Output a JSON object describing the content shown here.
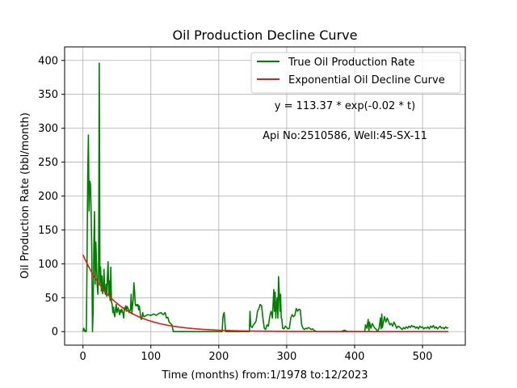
{
  "chart_data": {
    "type": "line",
    "title": "Oil Production Decline Curve",
    "xlabel": "Time (months) from:1/1978 to:12/2023",
    "ylabel": "Oil Production Rate (bbl/month)",
    "xlim": [
      -27,
      563
    ],
    "ylim": [
      -20,
      420
    ],
    "xticks": [
      0,
      100,
      200,
      300,
      400,
      500
    ],
    "yticks": [
      0,
      50,
      100,
      150,
      200,
      250,
      300,
      350,
      400
    ],
    "grid": true,
    "legend_position": "top-right",
    "annotations": [
      "y = 113.37 * exp(-0.02 * t)",
      "Api No:2510586, Well:45-SX-11"
    ],
    "series": [
      {
        "name": "True Oil Production Rate",
        "color": "#008000",
        "style": "line",
        "points": [
          [
            0,
            0
          ],
          [
            1,
            5
          ],
          [
            2,
            3
          ],
          [
            3,
            0
          ],
          [
            4,
            2
          ],
          [
            5,
            0
          ],
          [
            6,
            100
          ],
          [
            7,
            230
          ],
          [
            8,
            290
          ],
          [
            9,
            178
          ],
          [
            10,
            222
          ],
          [
            11,
            218
          ],
          [
            12,
            180
          ],
          [
            13,
            118
          ],
          [
            14,
            0
          ],
          [
            15,
            30
          ],
          [
            16,
            125
          ],
          [
            17,
            177
          ],
          [
            18,
            70
          ],
          [
            19,
            132
          ],
          [
            20,
            100
          ],
          [
            21,
            68
          ],
          [
            22,
            55
          ],
          [
            23,
            90
          ],
          [
            24,
            396
          ],
          [
            25,
            72
          ],
          [
            26,
            95
          ],
          [
            27,
            60
          ],
          [
            28,
            82
          ],
          [
            29,
            56
          ],
          [
            30,
            62
          ],
          [
            31,
            92
          ],
          [
            32,
            60
          ],
          [
            33,
            55
          ],
          [
            34,
            70
          ],
          [
            35,
            52
          ],
          [
            36,
            82
          ],
          [
            37,
            103
          ],
          [
            38,
            55
          ],
          [
            39,
            75
          ],
          [
            40,
            46
          ],
          [
            41,
            95
          ],
          [
            42,
            44
          ],
          [
            43,
            40
          ],
          [
            44,
            28
          ],
          [
            45,
            36
          ],
          [
            46,
            25
          ],
          [
            47,
            22
          ],
          [
            48,
            34
          ],
          [
            49,
            40
          ],
          [
            50,
            28
          ],
          [
            51,
            32
          ],
          [
            52,
            35
          ],
          [
            53,
            30
          ],
          [
            54,
            25
          ],
          [
            55,
            32
          ],
          [
            56,
            28
          ],
          [
            57,
            33
          ],
          [
            58,
            30
          ],
          [
            59,
            27
          ],
          [
            60,
            20
          ],
          [
            61,
            35
          ],
          [
            62,
            32
          ],
          [
            63,
            38
          ],
          [
            64,
            30
          ],
          [
            65,
            37
          ],
          [
            66,
            35
          ],
          [
            67,
            33
          ],
          [
            68,
            28
          ],
          [
            69,
            30
          ],
          [
            70,
            33
          ],
          [
            71,
            55
          ],
          [
            72,
            26
          ],
          [
            73,
            38
          ],
          [
            74,
            48
          ],
          [
            75,
            72
          ],
          [
            76,
            60
          ],
          [
            77,
            40
          ],
          [
            78,
            38
          ],
          [
            79,
            40
          ],
          [
            80,
            38
          ],
          [
            81,
            40
          ],
          [
            82,
            32
          ],
          [
            83,
            38
          ],
          [
            84,
            30
          ],
          [
            85,
            20
          ],
          [
            86,
            18
          ],
          [
            87,
            22
          ],
          [
            88,
            28
          ],
          [
            89,
            23
          ],
          [
            90,
            22
          ],
          [
            95,
            25
          ],
          [
            100,
            24
          ],
          [
            104,
            26
          ],
          [
            108,
            24
          ],
          [
            112,
            27
          ],
          [
            115,
            28
          ],
          [
            118,
            25
          ],
          [
            121,
            28
          ],
          [
            123,
            20
          ],
          [
            125,
            21
          ],
          [
            127,
            14
          ],
          [
            129,
            12
          ],
          [
            131,
            10
          ],
          [
            133,
            0
          ],
          [
            150,
            0
          ],
          [
            170,
            0
          ],
          [
            190,
            0
          ],
          [
            205,
            0
          ],
          [
            206,
            20
          ],
          [
            207,
            26
          ],
          [
            208,
            28
          ],
          [
            209,
            14
          ],
          [
            210,
            0
          ],
          [
            225,
            0
          ],
          [
            240,
            0
          ],
          [
            245,
            0
          ],
          [
            246,
            30
          ],
          [
            247,
            8
          ],
          [
            249,
            6
          ],
          [
            251,
            10
          ],
          [
            253,
            12
          ],
          [
            255,
            16
          ],
          [
            257,
            30
          ],
          [
            259,
            34
          ],
          [
            261,
            40
          ],
          [
            263,
            38
          ],
          [
            265,
            20
          ],
          [
            267,
            5
          ],
          [
            269,
            3
          ],
          [
            271,
            10
          ],
          [
            273,
            8
          ],
          [
            275,
            22
          ],
          [
            277,
            30
          ],
          [
            279,
            20
          ],
          [
            281,
            62
          ],
          [
            282,
            30
          ],
          [
            283,
            58
          ],
          [
            284,
            20
          ],
          [
            285,
            40
          ],
          [
            286,
            50
          ],
          [
            287,
            20
          ],
          [
            288,
            81
          ],
          [
            289,
            60
          ],
          [
            290,
            30
          ],
          [
            291,
            55
          ],
          [
            292,
            20
          ],
          [
            293,
            18
          ],
          [
            294,
            5
          ],
          [
            296,
            4
          ],
          [
            298,
            8
          ],
          [
            300,
            6
          ],
          [
            302,
            4
          ],
          [
            304,
            5
          ],
          [
            306,
            20
          ],
          [
            308,
            25
          ],
          [
            310,
            22
          ],
          [
            312,
            24
          ],
          [
            314,
            34
          ],
          [
            316,
            30
          ],
          [
            318,
            33
          ],
          [
            320,
            32
          ],
          [
            322,
            10
          ],
          [
            324,
            5
          ],
          [
            326,
            3
          ],
          [
            328,
            5
          ],
          [
            330,
            4
          ],
          [
            332,
            6
          ],
          [
            334,
            5
          ],
          [
            336,
            3
          ],
          [
            338,
            4
          ],
          [
            340,
            2
          ],
          [
            342,
            1
          ],
          [
            345,
            0
          ],
          [
            350,
            0
          ],
          [
            360,
            0
          ],
          [
            370,
            0
          ],
          [
            380,
            0
          ],
          [
            385,
            2
          ],
          [
            390,
            0
          ],
          [
            400,
            0
          ],
          [
            410,
            0
          ],
          [
            415,
            0
          ],
          [
            416,
            10
          ],
          [
            418,
            5
          ],
          [
            420,
            18
          ],
          [
            421,
            0
          ],
          [
            422,
            14
          ],
          [
            424,
            5
          ],
          [
            426,
            12
          ],
          [
            428,
            8
          ],
          [
            430,
            5
          ],
          [
            432,
            3
          ],
          [
            434,
            0
          ],
          [
            436,
            5
          ],
          [
            438,
            20
          ],
          [
            439,
            4
          ],
          [
            440,
            26
          ],
          [
            441,
            6
          ],
          [
            442,
            12
          ],
          [
            444,
            22
          ],
          [
            446,
            14
          ],
          [
            448,
            20
          ],
          [
            450,
            15
          ],
          [
            452,
            10
          ],
          [
            454,
            12
          ],
          [
            456,
            8
          ],
          [
            458,
            14
          ],
          [
            460,
            10
          ],
          [
            462,
            5
          ],
          [
            464,
            8
          ],
          [
            466,
            7
          ],
          [
            468,
            5
          ],
          [
            470,
            3
          ],
          [
            472,
            6
          ],
          [
            474,
            4
          ],
          [
            476,
            7
          ],
          [
            478,
            5
          ],
          [
            480,
            8
          ],
          [
            482,
            6
          ],
          [
            484,
            9
          ],
          [
            486,
            7
          ],
          [
            488,
            8
          ],
          [
            490,
            5
          ],
          [
            492,
            7
          ],
          [
            494,
            4
          ],
          [
            496,
            8
          ],
          [
            498,
            6
          ],
          [
            500,
            7
          ],
          [
            502,
            4
          ],
          [
            504,
            6
          ],
          [
            506,
            5
          ],
          [
            508,
            7
          ],
          [
            510,
            4
          ],
          [
            512,
            8
          ],
          [
            514,
            6
          ],
          [
            516,
            9
          ],
          [
            518,
            5
          ],
          [
            520,
            7
          ],
          [
            522,
            4
          ],
          [
            524,
            6
          ],
          [
            526,
            8
          ],
          [
            528,
            5
          ],
          [
            530,
            6
          ],
          [
            532,
            4
          ],
          [
            534,
            7
          ],
          [
            536,
            5
          ],
          [
            538,
            6
          ]
        ]
      },
      {
        "name": "Exponential Oil Decline Curve",
        "color": "#e31a1c",
        "style": "line",
        "function": "y = 113.37 * exp(-0.02 * t)",
        "a": 113.37,
        "b": 0.02,
        "x_range": [
          0,
          538
        ]
      }
    ]
  }
}
